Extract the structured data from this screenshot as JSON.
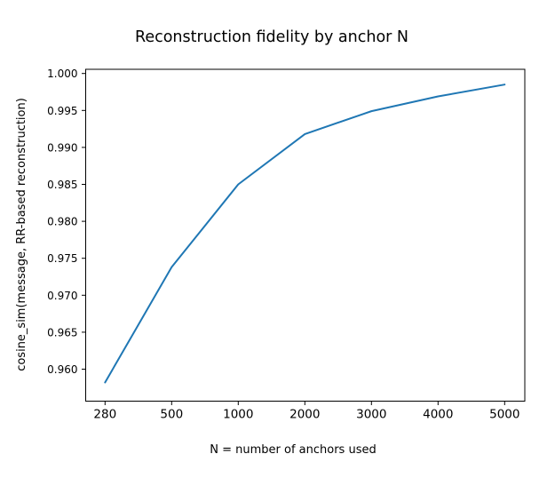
{
  "page": {
    "background": "#ffffff",
    "kind": "matplotlib-line-plot"
  },
  "chart_data": {
    "type": "line",
    "title": "Reconstruction fidelity by anchor N",
    "xlabel": "N = number of anchors used",
    "ylabel": "cosine_sim(message, RR-based reconstruction)",
    "categories": [
      "280",
      "500",
      "1000",
      "2000",
      "3000",
      "4000",
      "5000"
    ],
    "series": [
      {
        "name": "cosine similarity",
        "values": [
          0.9582,
          0.9738,
          0.985,
          0.9918,
          0.9949,
          0.9969,
          0.9985
        ]
      }
    ],
    "yticks": [
      0.96,
      0.965,
      0.97,
      0.975,
      0.98,
      0.985,
      0.99,
      0.995,
      1.0
    ],
    "ytick_labels": [
      "0.960",
      "0.965",
      "0.970",
      "0.975",
      "0.980",
      "0.985",
      "0.990",
      "0.995",
      "1.000"
    ],
    "ylim": [
      0.9557,
      1.0006
    ],
    "x_axis_style": "categorical-even-spacing",
    "grid": false,
    "legend_position": "none",
    "line_color": "#1f77b4",
    "axis_color": "#000000",
    "background_color": "#ffffff"
  }
}
